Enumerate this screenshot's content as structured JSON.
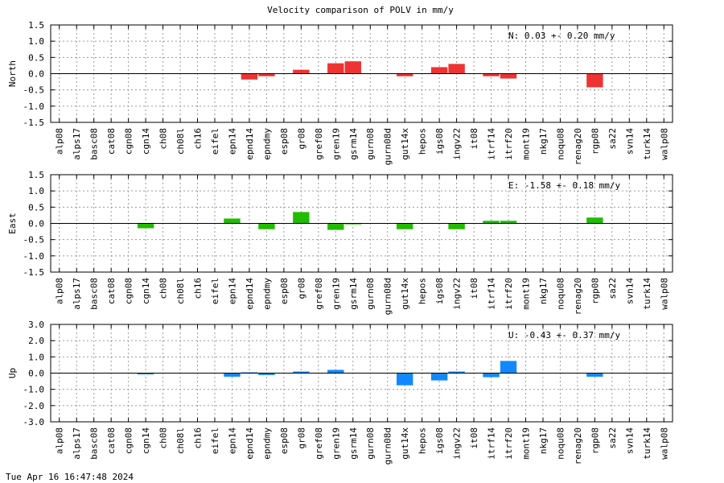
{
  "timestamp": "Tue Apr 16 16:47:48 2024",
  "chart_data": {
    "type": "bar",
    "title": "Velocity comparison of POLV in mm/y",
    "categories": [
      "alp08",
      "alps17",
      "basc08",
      "cat08",
      "cgn08",
      "cgn14",
      "ch08",
      "ch08l",
      "ch16",
      "eifel",
      "epn14",
      "epnd14",
      "epndmy",
      "esp08",
      "gr08",
      "gref08",
      "gren19",
      "gsrm14",
      "gurn08",
      "gurn08d",
      "gut14x",
      "hepos",
      "igs08",
      "ingv22",
      "it08",
      "itrf14",
      "itrf20",
      "mont19",
      "nkg17",
      "noqu08",
      "renag20",
      "rgp08",
      "sa22",
      "svn14",
      "turk14",
      "walp08"
    ],
    "grid": true,
    "panels": [
      {
        "ylabel": "North",
        "color": "#ee3333",
        "ylim": [
          -1.5,
          1.5
        ],
        "yticks": [
          "1.5",
          "1.0",
          "0.5",
          "0.0",
          "-0.5",
          "-1.0",
          "-1.5"
        ],
        "stat": "N:   0.03 +-  0.20 mm/y",
        "values": [
          0,
          0,
          0,
          0,
          0,
          0,
          0,
          0,
          0,
          0,
          0,
          -0.18,
          -0.08,
          0,
          0.12,
          0,
          0.32,
          0.38,
          0,
          0,
          -0.08,
          0,
          0.2,
          0.3,
          0,
          -0.08,
          -0.15,
          0,
          0,
          0,
          0,
          -0.42,
          0,
          0,
          0,
          0
        ]
      },
      {
        "ylabel": "East",
        "color": "#22bb00",
        "ylim": [
          -1.5,
          1.5
        ],
        "yticks": [
          "1.5",
          "1.0",
          "0.5",
          "0.0",
          "-0.5",
          "-1.0",
          "-1.5"
        ],
        "stat": "E:  -1.58 +-  0.18 mm/y",
        "values": [
          0,
          0,
          0,
          0,
          0,
          -0.15,
          0,
          0,
          0,
          0,
          0.15,
          0,
          -0.18,
          0,
          0.35,
          0,
          -0.2,
          -0.03,
          0,
          0,
          -0.18,
          0,
          0,
          -0.18,
          0,
          0.08,
          0.08,
          0,
          0,
          0,
          0,
          0.18,
          0,
          0,
          0,
          0
        ]
      },
      {
        "ylabel": "Up",
        "color": "#1188ff",
        "ylim": [
          -3.0,
          3.0
        ],
        "yticks": [
          "3.0",
          "2.0",
          "1.0",
          "0.0",
          "-1.0",
          "-2.0",
          "-3.0"
        ],
        "stat": "U:  -0.43 +-  0.37 mm/y",
        "values": [
          0,
          0,
          0,
          0,
          0,
          -0.08,
          0,
          0,
          0,
          0,
          -0.22,
          0.05,
          -0.12,
          0,
          0.1,
          0,
          0.2,
          0,
          0,
          0,
          -0.75,
          0,
          -0.45,
          0.1,
          0,
          -0.25,
          0.75,
          0,
          0,
          0,
          0,
          -0.22,
          0,
          0,
          0,
          0
        ]
      }
    ]
  }
}
